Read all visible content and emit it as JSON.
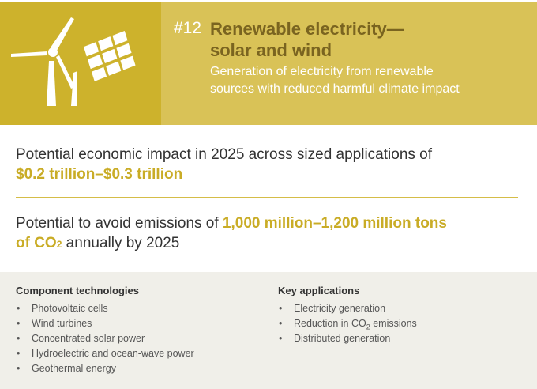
{
  "header": {
    "number": "#12",
    "title_line1": "Renewable electricity—",
    "title_line2": "solar and wind",
    "subtitle_line1": "Generation of electricity from renewable",
    "subtitle_line2": "sources with reduced harmful climate impact",
    "icon": "wind-turbine-and-solar-panel-icon",
    "colors": {
      "icon_bg": "#cdb22c",
      "header_bg": "#d9c257",
      "title": "#7a6420",
      "highlight": "#c9ac26"
    }
  },
  "economic": {
    "text": "Potential economic impact in 2025 across sized applications of",
    "value": "$0.2 trillion–$0.3 trillion"
  },
  "emissions": {
    "text_before": "Potential to avoid emissions of ",
    "value_line1": "1,000 million–1,200 million tons",
    "value_line2_prefix": "of CO",
    "value_sub": "2",
    "text_after": " annually by 2025"
  },
  "components": {
    "heading": "Component technologies",
    "items": [
      "Photovoltaic cells",
      "Wind turbines",
      "Concentrated solar power",
      "Hydroelectric and ocean-wave power",
      "Geothermal energy"
    ]
  },
  "applications": {
    "heading": "Key applications",
    "items": [
      "Electricity generation",
      "Reduction in CO",
      "Distributed generation"
    ],
    "item2_sub": "2",
    "item2_suffix": " emissions"
  }
}
